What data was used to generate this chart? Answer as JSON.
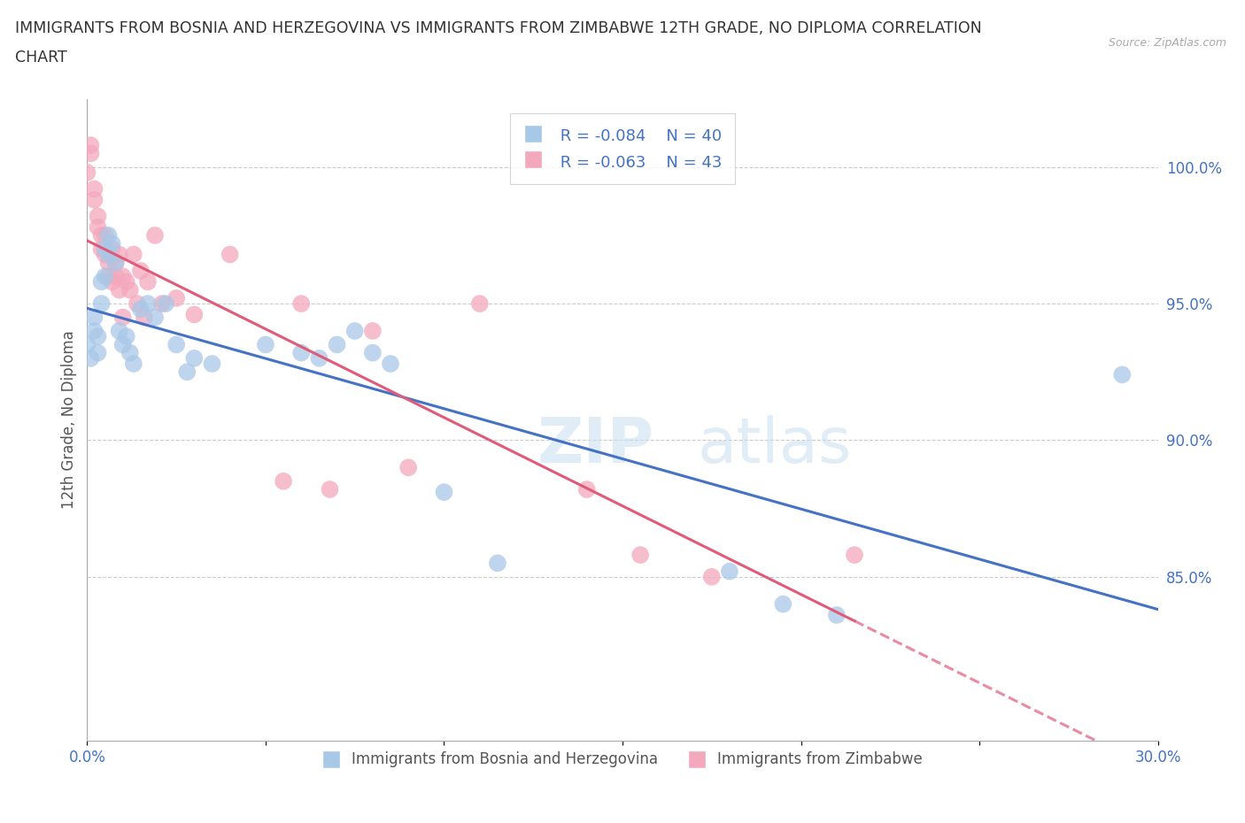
{
  "title_line1": "IMMIGRANTS FROM BOSNIA AND HERZEGOVINA VS IMMIGRANTS FROM ZIMBABWE 12TH GRADE, NO DIPLOMA CORRELATION",
  "title_line2": "CHART",
  "source": "Source: ZipAtlas.com",
  "ylabel": "12th Grade, No Diploma",
  "xlim": [
    0.0,
    0.3
  ],
  "ylim": [
    0.79,
    1.025
  ],
  "xticks": [
    0.0,
    0.05,
    0.1,
    0.15,
    0.2,
    0.25,
    0.3
  ],
  "xticklabels": [
    "0.0%",
    "",
    "",
    "",
    "",
    "",
    "30.0%"
  ],
  "ytick_positions": [
    0.85,
    0.9,
    0.95,
    1.0
  ],
  "ytick_labels": [
    "85.0%",
    "90.0%",
    "95.0%",
    "100.0%"
  ],
  "bosnia_color": "#a8c8e8",
  "zimbabwe_color": "#f4a8bc",
  "bosnia_line_color": "#4472c4",
  "zimbabwe_line_color": "#e05a7a",
  "legend_R_bosnia": "R = -0.084",
  "legend_N_bosnia": "N = 40",
  "legend_R_zimbabwe": "R = -0.063",
  "legend_N_zimbabwe": "N = 43",
  "watermark_big": "ZIP",
  "watermark_small": "atlas",
  "bosnia_scatter_x": [
    0.0,
    0.001,
    0.002,
    0.002,
    0.003,
    0.003,
    0.004,
    0.004,
    0.005,
    0.005,
    0.006,
    0.006,
    0.007,
    0.008,
    0.009,
    0.01,
    0.011,
    0.012,
    0.013,
    0.015,
    0.017,
    0.019,
    0.022,
    0.025,
    0.028,
    0.03,
    0.035,
    0.05,
    0.06,
    0.065,
    0.07,
    0.075,
    0.08,
    0.085,
    0.1,
    0.115,
    0.18,
    0.195,
    0.21,
    0.29
  ],
  "bosnia_scatter_y": [
    0.935,
    0.93,
    0.94,
    0.945,
    0.938,
    0.932,
    0.95,
    0.958,
    0.96,
    0.97,
    0.968,
    0.975,
    0.972,
    0.965,
    0.94,
    0.935,
    0.938,
    0.932,
    0.928,
    0.948,
    0.95,
    0.945,
    0.95,
    0.935,
    0.925,
    0.93,
    0.928,
    0.935,
    0.932,
    0.93,
    0.935,
    0.94,
    0.932,
    0.928,
    0.881,
    0.855,
    0.852,
    0.84,
    0.836,
    0.924
  ],
  "zimbabwe_scatter_x": [
    0.0,
    0.001,
    0.001,
    0.002,
    0.002,
    0.003,
    0.003,
    0.004,
    0.004,
    0.005,
    0.005,
    0.006,
    0.006,
    0.007,
    0.007,
    0.008,
    0.008,
    0.009,
    0.009,
    0.01,
    0.01,
    0.011,
    0.012,
    0.013,
    0.014,
    0.015,
    0.016,
    0.017,
    0.019,
    0.021,
    0.025,
    0.03,
    0.04,
    0.055,
    0.06,
    0.068,
    0.08,
    0.09,
    0.11,
    0.14,
    0.155,
    0.175,
    0.215
  ],
  "zimbabwe_scatter_y": [
    0.998,
    1.005,
    1.008,
    0.988,
    0.992,
    0.978,
    0.982,
    0.97,
    0.975,
    0.968,
    0.975,
    0.96,
    0.965,
    0.97,
    0.958,
    0.965,
    0.96,
    0.955,
    0.968,
    0.96,
    0.945,
    0.958,
    0.955,
    0.968,
    0.95,
    0.962,
    0.945,
    0.958,
    0.975,
    0.95,
    0.952,
    0.946,
    0.968,
    0.885,
    0.95,
    0.882,
    0.94,
    0.89,
    0.95,
    0.882,
    0.858,
    0.85,
    0.858
  ]
}
